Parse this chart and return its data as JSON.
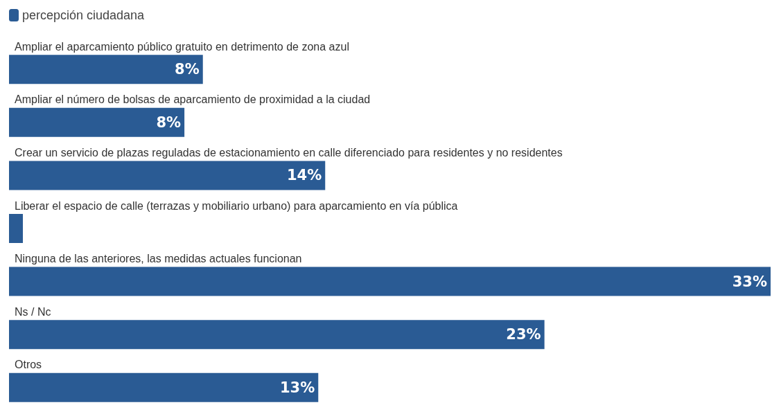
{
  "chart_data": {
    "type": "bar",
    "orientation": "horizontal",
    "categories": [
      "Ampliar el aparcamiento público gratuito en detrimento de zona azul",
      "Ampliar el número de bolsas de aparcamiento de proximidad a la ciudad",
      "Crear un servicio de plazas reguladas de estacionamiento en calle diferenciado para residentes y no residentes",
      "Liberar el espacio de calle (terrazas y mobiliario urbano) para aparcamiento en vía pública",
      "Ninguna de las anteriores, las medidas actuales funcionan",
      "Ns / Nc",
      "Otros"
    ],
    "series": [
      {
        "name": "percepción ciudadana",
        "color": "#2a5b94",
        "values": [
          8.4,
          7.6,
          13.7,
          0.6,
          33,
          23.2,
          13.4
        ],
        "value_labels": [
          "8%",
          "8%",
          "14%",
          null,
          "33%",
          "23%",
          "13%"
        ]
      }
    ],
    "legend": "top left"
  }
}
